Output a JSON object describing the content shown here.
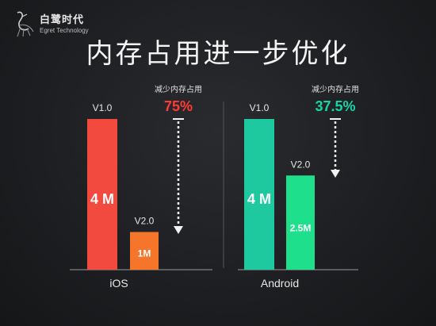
{
  "brand": {
    "name": "白鹭时代",
    "tagline": "Egret Technology"
  },
  "title": "内存占用进一步优化",
  "colors": {
    "ios_v1": "#f24a3e",
    "ios_v2": "#f5762a",
    "android_v1": "#1ec9a0",
    "android_v2": "#1ee08c",
    "ios_percent": "#ff3b36",
    "android_percent": "#16d6a8",
    "arrow": "#f2f2f2"
  },
  "chart_data": [
    {
      "type": "bar",
      "group": "iOS",
      "categories": [
        "V1.0",
        "V2.0"
      ],
      "values": [
        4,
        1
      ],
      "value_labels": [
        "4 M",
        "1M"
      ],
      "unit": "M",
      "annotation": {
        "label": "减少内存占用",
        "value": "75%"
      }
    },
    {
      "type": "bar",
      "group": "Android",
      "categories": [
        "V1.0",
        "V2.0"
      ],
      "values": [
        4,
        2.5
      ],
      "value_labels": [
        "4 M",
        "2.5M"
      ],
      "unit": "M",
      "annotation": {
        "label": "减少内存占用",
        "value": "37.5%"
      }
    }
  ]
}
